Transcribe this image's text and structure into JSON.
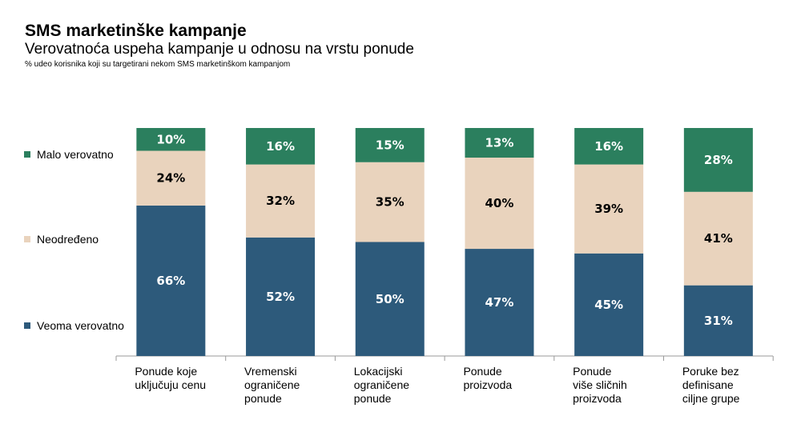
{
  "chart_data": {
    "type": "bar",
    "stacked": true,
    "title": "SMS marketinške kampanje",
    "subtitle": "Verovatnoća uspeha kampanje u odnosu na vrstu ponude",
    "note": "% udeo korisnika koji su targetirani nekom SMS marketinškom kampanjom",
    "categories": [
      [
        "Ponude koje",
        "uključuju cenu"
      ],
      [
        "Vremenski",
        "ograničene",
        "ponude"
      ],
      [
        "Lokacijski",
        "ograničene",
        "ponude"
      ],
      [
        "Ponude",
        "proizvoda"
      ],
      [
        "Ponude",
        "više sličnih",
        "proizvoda"
      ],
      [
        "Poruke bez",
        "definisane",
        "ciljne grupe"
      ]
    ],
    "series": [
      {
        "name": "Veoma verovatno",
        "color": "#2d5a7b",
        "text_color": "#ffffff",
        "values": [
          66,
          52,
          50,
          47,
          45,
          31
        ]
      },
      {
        "name": "Neodređeno",
        "color": "#e9d3bd",
        "text_color": "#000000",
        "values": [
          24,
          32,
          35,
          40,
          39,
          41
        ]
      },
      {
        "name": "Malo verovatno",
        "color": "#2b7f5e",
        "text_color": "#ffffff",
        "values": [
          10,
          16,
          15,
          13,
          16,
          28
        ]
      }
    ],
    "ylim": [
      0,
      100
    ],
    "legend_position": "left"
  }
}
